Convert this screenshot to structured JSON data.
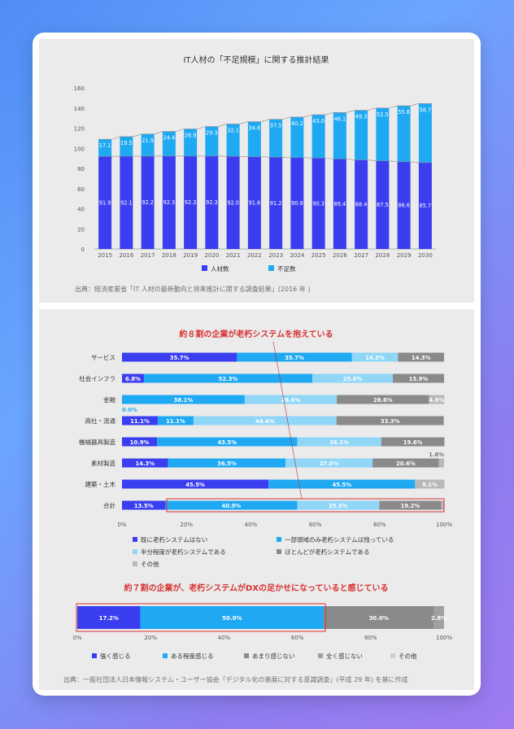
{
  "chart1": {
    "type": "bar",
    "stacked": true,
    "title": "IT人材の「不足規模」に関する推計結果",
    "categories": [
      "2015",
      "2016",
      "2017",
      "2018",
      "2019",
      "2020",
      "2021",
      "2022",
      "2023",
      "2024",
      "2025",
      "2026",
      "2027",
      "2028",
      "2029",
      "2030"
    ],
    "series": [
      {
        "name": "人材数",
        "color": "#3a3ef0",
        "values": [
          91.9,
          92.1,
          92.2,
          92.3,
          92.3,
          92.3,
          92.0,
          91.6,
          91.2,
          90.8,
          90.3,
          89.4,
          88.4,
          87.5,
          86.6,
          85.7
        ]
      },
      {
        "name": "不足数",
        "color": "#1fa9f3",
        "values": [
          17.1,
          19.5,
          21.9,
          24.4,
          26.9,
          29.3,
          32.1,
          34.8,
          37.5,
          40.2,
          43.0,
          46.1,
          49.3,
          52.5,
          55.6,
          58.7
        ]
      }
    ],
    "ylim": [
      0,
      160
    ],
    "yticks": [
      "0",
      "20",
      "40",
      "60",
      "80",
      "100",
      "120",
      "140",
      "160"
    ],
    "source": "出典：経済産業省「IT 人材の最新動向と将来推計に関する調査結果」(2016 年 )"
  },
  "chart2": {
    "type": "bar",
    "orientation": "horizontal-stacked-100",
    "title": "約８割の企業が老朽システムを抱えている",
    "categories": [
      "サービス",
      "社会インフラ",
      "金融",
      "商社・流通",
      "機械器具製造",
      "素材製造",
      "建築・土木",
      "合計"
    ],
    "series": [
      {
        "name": "既に老朽システムはない",
        "color": "#3a3ef0",
        "values": [
          35.7,
          6.8,
          0.0,
          11.1,
          10.9,
          14.3,
          45.5,
          13.5
        ],
        "labels": [
          "35.7%",
          "6.8%",
          "0.0%",
          "11.1%",
          "10.9%",
          "14.3%",
          "45.5%",
          "13.5%"
        ]
      },
      {
        "name": "一部領域のみ老朽システムは残っている",
        "color": "#1fa9f3",
        "values": [
          35.7,
          52.3,
          38.1,
          11.1,
          43.5,
          36.5,
          45.5,
          40.9
        ],
        "labels": [
          "35.7%",
          "52.3%",
          "38.1%",
          "11.1%",
          "43.5%",
          "36.5%",
          "45.5%",
          "40.9%"
        ]
      },
      {
        "name": "半分程度が老朽システムである",
        "color": "#8fd6f7",
        "values": [
          14.3,
          25.0,
          28.6,
          44.4,
          26.1,
          27.0,
          0,
          25.5
        ],
        "labels": [
          "14.3%",
          "25.0%",
          "28.6%",
          "44.4%",
          "26.1%",
          "27.0%",
          "",
          "25.5%"
        ]
      },
      {
        "name": "ほとんどが老朽システムである",
        "color": "#8a8a8a",
        "values": [
          14.3,
          15.9,
          28.6,
          33.3,
          19.6,
          20.6,
          0,
          19.2
        ],
        "labels": [
          "14.3%",
          "15.9%",
          "28.6%",
          "33.3%",
          "19.6%",
          "20.6%",
          "",
          "19.2%"
        ]
      },
      {
        "name": "その他",
        "color": "#b8b8b8",
        "values": [
          0,
          0,
          4.8,
          0,
          0,
          1.6,
          9.1,
          0.9
        ],
        "labels": [
          "",
          "",
          "4.8%",
          "",
          "",
          "1.6%",
          "9.1%",
          ""
        ]
      }
    ],
    "xticks": [
      "0%",
      "20%",
      "40%",
      "60%",
      "80%",
      "100%"
    ]
  },
  "chart3": {
    "type": "bar",
    "orientation": "horizontal-stacked-100",
    "title": "約７割の企業が、老朽システムがDXの足かせになっていると感じている",
    "categories": [
      "全体"
    ],
    "series": [
      {
        "name": "強く感じる",
        "color": "#3a3ef0",
        "values": [
          17.2
        ],
        "labels": [
          "17.2%"
        ]
      },
      {
        "name": "ある程度感じる",
        "color": "#1fa9f3",
        "values": [
          50.0
        ],
        "labels": [
          "50.0%"
        ]
      },
      {
        "name": "あまり感じない",
        "color": "#8a8a8a",
        "values": [
          30.0
        ],
        "labels": [
          "30.0%"
        ]
      },
      {
        "name": "全く感じない",
        "color": "#a0a0a0",
        "values": [
          2.8
        ],
        "labels": [
          "2.8%"
        ]
      },
      {
        "name": "その他",
        "color": "#cfcfcf",
        "values": [
          0.0
        ],
        "labels": [
          ""
        ]
      }
    ],
    "xticks": [
      "0%",
      "20%",
      "40%",
      "60%",
      "80%",
      "100%"
    ],
    "source": "出典：一般社団法人日本情報システム・ユーザー協会「デジタル化の進展に対する意識調査」(平成 29 年) を基に作成"
  }
}
